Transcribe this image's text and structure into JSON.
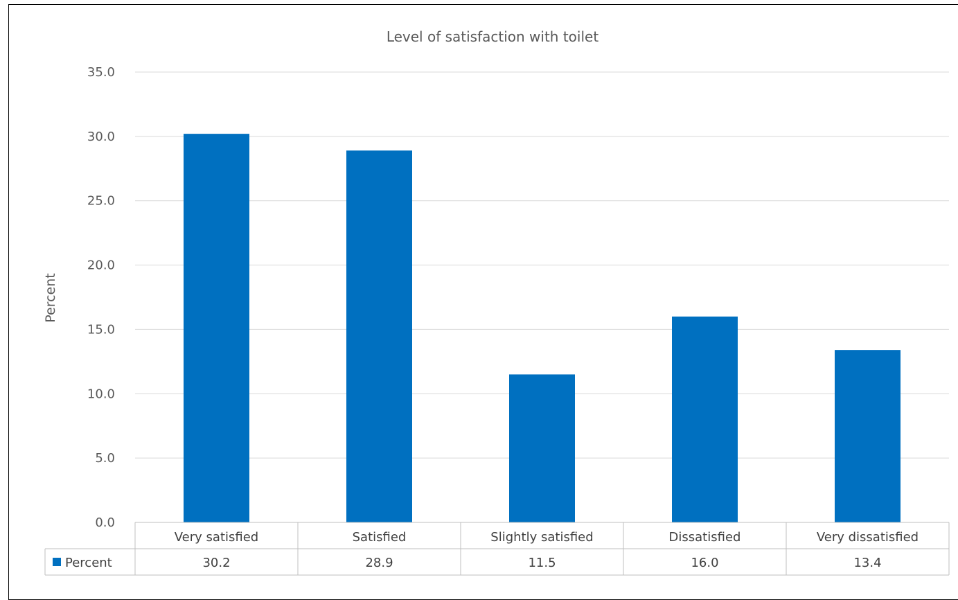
{
  "chart_data": {
    "type": "bar",
    "title": "Level  of satisfaction with toilet",
    "ylabel": "Percent",
    "xlabel": "",
    "categories": [
      "Very satisfied",
      "Satisfied",
      "Slightly satisfied",
      "Dissatisfied",
      "Very dissatisfied"
    ],
    "series": [
      {
        "name": "Percent",
        "values": [
          30.2,
          28.9,
          11.5,
          16.0,
          13.4
        ],
        "value_labels": [
          "30.2",
          "28.9",
          "11.5",
          "16.0",
          "13.4"
        ]
      }
    ],
    "ylim": [
      0,
      35
    ],
    "yticks": [
      "0.0",
      "5.0",
      "10.0",
      "15.0",
      "20.0",
      "25.0",
      "30.0",
      "35.0"
    ],
    "grid": true,
    "legend": "data-table",
    "colors": {
      "bar": "#0070C0",
      "gridline": "#D9D9D9",
      "table_border": "#BFBFBF",
      "text": "#595959"
    }
  }
}
